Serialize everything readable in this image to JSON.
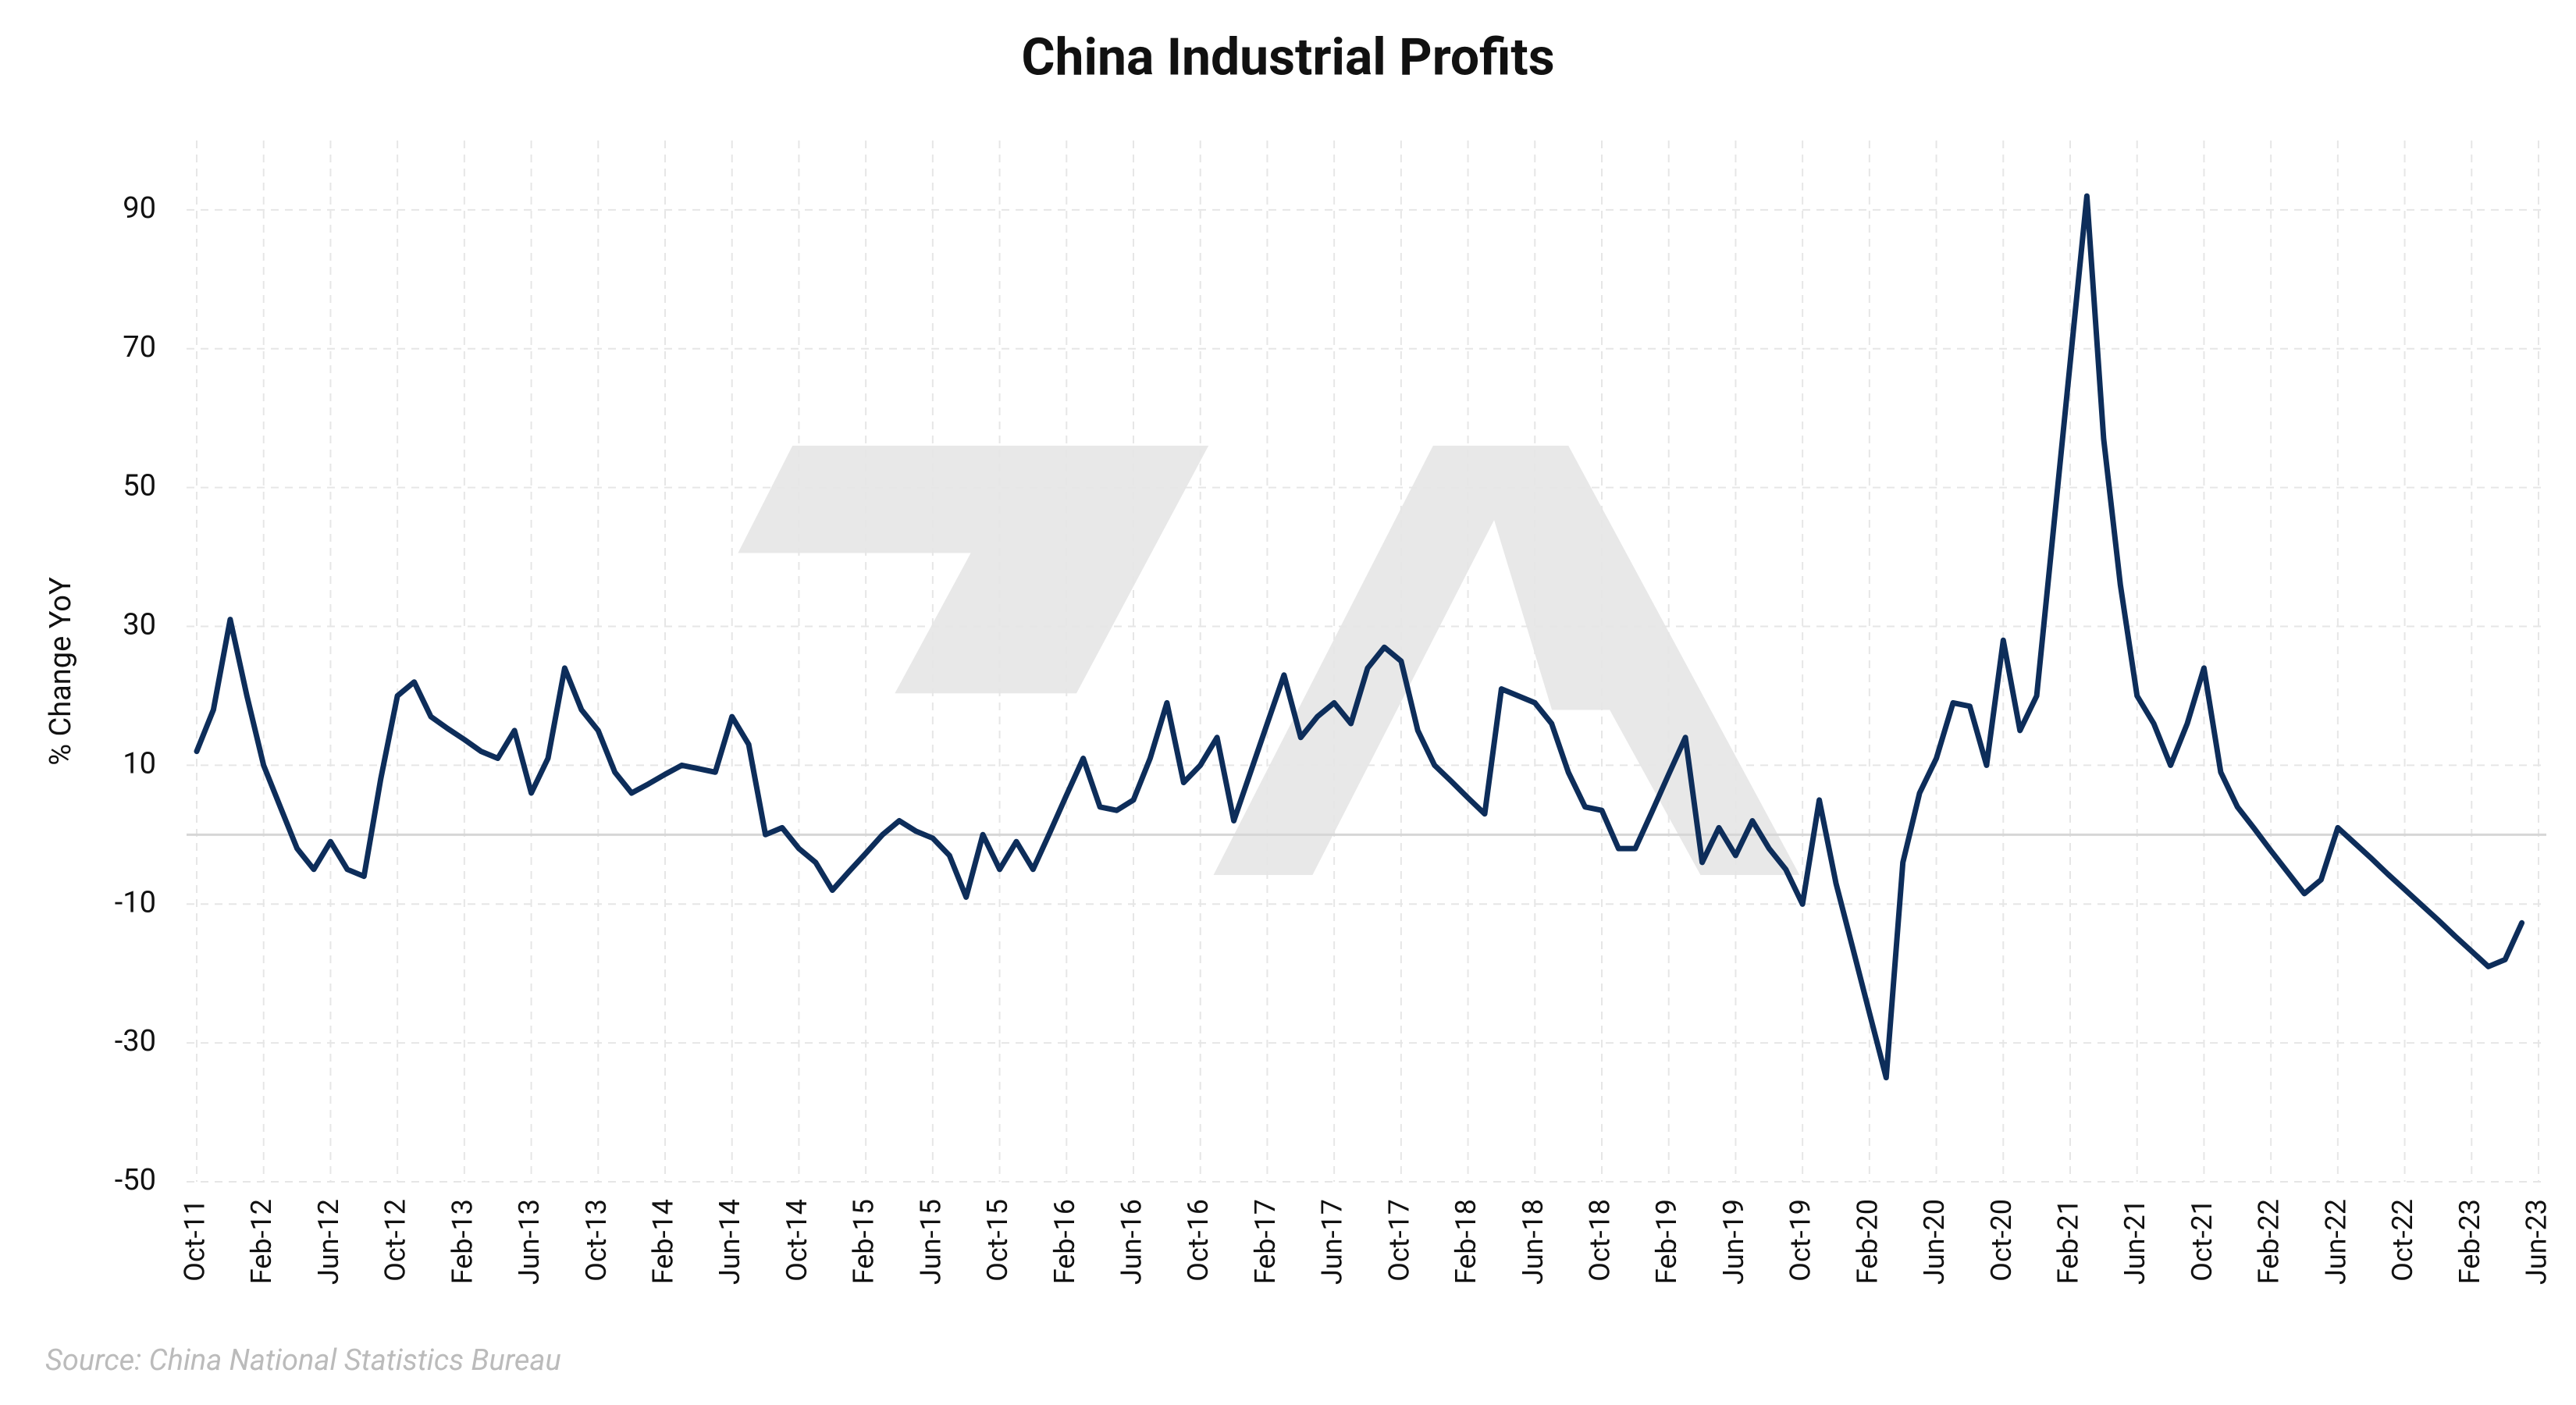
{
  "chart_data": {
    "type": "line",
    "title": "China Industrial Profits",
    "y_label": "% Change YoY",
    "source": "Source: China National Statistics Bureau",
    "categories": [
      "Oct-11",
      null,
      null,
      null,
      "Feb-12",
      null,
      null,
      null,
      "Jun-12",
      null,
      null,
      null,
      "Oct-12",
      null,
      null,
      null,
      "Feb-13",
      null,
      null,
      null,
      "Jun-13",
      null,
      null,
      null,
      "Oct-13",
      null,
      null,
      null,
      "Feb-14",
      null,
      null,
      null,
      "Jun-14",
      null,
      null,
      null,
      "Oct-14",
      null,
      null,
      null,
      "Feb-15",
      null,
      null,
      null,
      "Jun-15",
      null,
      null,
      null,
      "Oct-15",
      null,
      null,
      null,
      "Feb-16",
      null,
      null,
      null,
      "Jun-16",
      null,
      null,
      null,
      "Oct-16",
      null,
      null,
      null,
      "Feb-17",
      null,
      null,
      null,
      "Jun-17",
      null,
      null,
      null,
      "Oct-17",
      null,
      null,
      null,
      "Feb-18",
      null,
      null,
      null,
      "Jun-18",
      null,
      null,
      null,
      "Oct-18",
      null,
      null,
      null,
      "Feb-19",
      null,
      null,
      null,
      "Jun-19",
      null,
      null,
      null,
      "Oct-19",
      null,
      null,
      null,
      "Feb-20",
      null,
      null,
      null,
      "Jun-20",
      null,
      null,
      null,
      "Oct-20",
      null,
      null,
      null,
      "Feb-21",
      null,
      null,
      null,
      "Jun-21",
      null,
      null,
      null,
      "Oct-21",
      null,
      null,
      null,
      "Feb-22",
      null,
      null,
      null,
      "Jun-22",
      null,
      null,
      null,
      "Oct-22",
      null,
      null,
      null,
      "Feb-23",
      null,
      null,
      null,
      "Jun-23"
    ],
    "series": [
      {
        "name": "Industrial Profits",
        "color": "#0d2d5a",
        "values": [
          12,
          18,
          31,
          20,
          10,
          4,
          -2,
          -5,
          -1,
          -5,
          -6,
          8,
          20,
          22,
          17,
          15.3,
          13.7,
          12,
          11,
          15,
          6,
          11,
          24,
          18,
          15,
          9,
          6,
          7.3,
          8.7,
          10,
          9.5,
          9,
          17,
          13,
          0,
          1,
          -2,
          -4,
          -8,
          -5.3,
          -2.7,
          0,
          2,
          0.5,
          -0.5,
          -3,
          -9,
          0,
          -5,
          -1,
          -5,
          0.3,
          5.7,
          11,
          4,
          3.5,
          5,
          11,
          19,
          7.5,
          10,
          14,
          2,
          9,
          16,
          23,
          14,
          17,
          19,
          16,
          24,
          27,
          25,
          15,
          10,
          7.7,
          5.3,
          3,
          21,
          20,
          19,
          16,
          9,
          4,
          3.5,
          -2,
          -2,
          3.3,
          8.7,
          14,
          -4,
          1,
          -3,
          2,
          -2,
          -5,
          -10,
          5,
          -7,
          -16.3,
          -25.7,
          -35,
          -4,
          6,
          11,
          19,
          18.5,
          10,
          28,
          15,
          20,
          44,
          68,
          92,
          57,
          36,
          20,
          16,
          10,
          16,
          24,
          9,
          4,
          0.9,
          -2.3,
          -5.4,
          -8.5,
          -6.5,
          1,
          -1.2,
          -3.4,
          -5.7,
          -7.9,
          -10.1,
          -12.3,
          -14.6,
          -16.8,
          -19,
          -18,
          -12.7,
          null
        ]
      }
    ],
    "ylim": [
      -50,
      100
    ],
    "yticks": [
      -50,
      -30,
      -10,
      10,
      30,
      50,
      70,
      90
    ],
    "grid": true
  }
}
